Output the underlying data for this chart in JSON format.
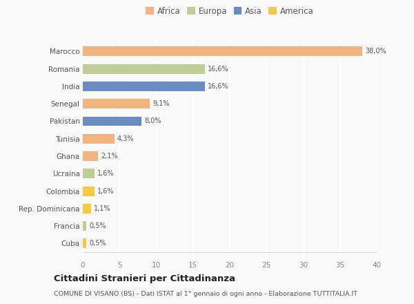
{
  "categories": [
    "Marocco",
    "Romania",
    "India",
    "Senegal",
    "Pakistan",
    "Tunisia",
    "Ghana",
    "Ucraina",
    "Colombia",
    "Rep. Dominicana",
    "Francia",
    "Cuba"
  ],
  "values": [
    38.0,
    16.6,
    16.6,
    9.1,
    8.0,
    4.3,
    2.1,
    1.6,
    1.6,
    1.1,
    0.5,
    0.5
  ],
  "labels": [
    "38,0%",
    "16,6%",
    "16,6%",
    "9,1%",
    "8,0%",
    "4,3%",
    "2,1%",
    "1,6%",
    "1,6%",
    "1,1%",
    "0,5%",
    "0,5%"
  ],
  "colors": [
    "#F0B482",
    "#BFCC96",
    "#6B8CBE",
    "#F0B482",
    "#6B8CBE",
    "#F0B482",
    "#F0B482",
    "#BFCC96",
    "#F5C842",
    "#F5C842",
    "#BFCC96",
    "#F5C842"
  ],
  "legend_labels": [
    "Africa",
    "Europa",
    "Asia",
    "America"
  ],
  "legend_colors": [
    "#F0B482",
    "#BFCC96",
    "#6B8CBE",
    "#F5C842"
  ],
  "xlim": [
    0,
    40
  ],
  "xticks": [
    0,
    5,
    10,
    15,
    20,
    25,
    30,
    35,
    40
  ],
  "title": "Cittadini Stranieri per Cittadinanza",
  "subtitle": "COMUNE DI VISANO (BS) - Dati ISTAT al 1° gennaio di ogni anno - Elaborazione TUTTITALIA.IT",
  "background_color": "#f9f9f9",
  "grid_color": "#ffffff",
  "bar_height": 0.55
}
